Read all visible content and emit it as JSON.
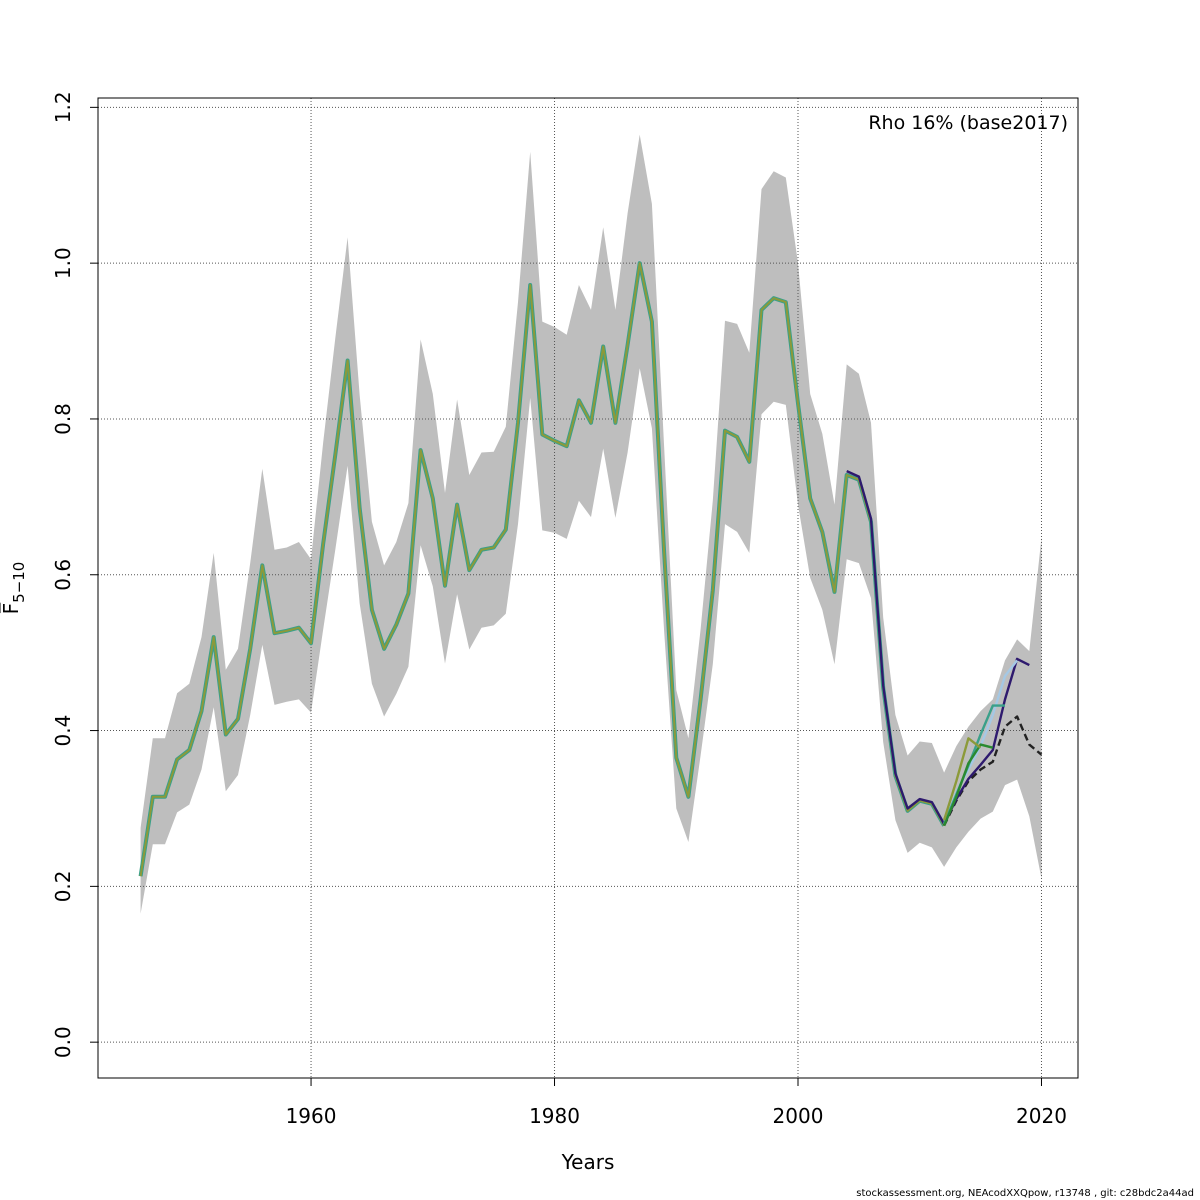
{
  "chart_data": {
    "type": "line",
    "title": "",
    "xlabel": "Years",
    "ylabel": "F̅",
    "ylabel_subscript": "5−10",
    "annotation": "Rho 16% (base2017)",
    "footer": "stockassessment.org, NEAcodXXQpow, r13748 , git: c28bdc2a44ad",
    "xlim": [
      1942.5,
      2023
    ],
    "ylim": [
      -0.046,
      1.212
    ],
    "x_ticks": [
      1960,
      1980,
      2000,
      2020
    ],
    "x_tick_labels": [
      "1960",
      "1980",
      "2000",
      "2020"
    ],
    "y_ticks": [
      0.0,
      0.2,
      0.4,
      0.6,
      0.8,
      1.0,
      1.2
    ],
    "y_tick_labels": [
      "0.0",
      "0.2",
      "0.4",
      "0.6",
      "0.8",
      "1.0",
      "1.2"
    ],
    "grid": true,
    "colors": {
      "band": "#bebebe",
      "base": "#222222",
      "peel1": "#2e1a6e",
      "peel2": "#a5c8e4",
      "peel3": "#3aa08a",
      "peel4": "#2a8a30",
      "peel5": "#8c9a3a",
      "grid": "#555555"
    },
    "years": [
      1946,
      1947,
      1948,
      1949,
      1950,
      1951,
      1952,
      1953,
      1954,
      1955,
      1956,
      1957,
      1958,
      1959,
      1960,
      1961,
      1962,
      1963,
      1964,
      1965,
      1966,
      1967,
      1968,
      1969,
      1970,
      1971,
      1972,
      1973,
      1974,
      1975,
      1976,
      1977,
      1978,
      1979,
      1980,
      1981,
      1982,
      1983,
      1984,
      1985,
      1986,
      1987,
      1988,
      1989,
      1990,
      1991,
      1992,
      1993,
      1994,
      1995,
      1996,
      1997,
      1998,
      1999,
      2000,
      2001,
      2002,
      2003,
      2004,
      2005,
      2006,
      2007,
      2008,
      2009,
      2010,
      2011,
      2012,
      2013,
      2014,
      2015,
      2016,
      2017,
      2018,
      2019,
      2020
    ],
    "main_series": [
      0.213,
      0.315,
      0.315,
      0.363,
      0.375,
      0.425,
      0.52,
      0.395,
      0.415,
      0.505,
      0.612,
      0.525,
      0.528,
      0.532,
      0.512,
      0.64,
      0.755,
      0.875,
      0.685,
      0.555,
      0.505,
      0.536,
      0.576,
      0.76,
      0.698,
      0.586,
      0.69,
      0.606,
      0.632,
      0.635,
      0.658,
      0.795,
      0.972,
      0.78,
      0.772,
      0.765,
      0.824,
      0.795,
      0.893,
      0.795,
      0.895,
      1.0,
      0.925,
      0.63,
      0.365,
      0.315,
      0.44,
      0.58,
      0.785,
      0.777,
      0.745,
      0.94,
      0.955,
      0.95,
      0.82,
      0.698,
      0.655,
      0.578,
      0.728,
      0.722,
      0.668,
      0.455,
      0.342,
      0.297,
      0.31,
      0.306,
      0.278
    ],
    "band_upper": [
      0.275,
      0.39,
      0.39,
      0.448,
      0.46,
      0.52,
      0.628,
      0.478,
      0.505,
      0.615,
      0.736,
      0.632,
      0.635,
      0.642,
      0.62,
      0.77,
      0.905,
      1.033,
      0.83,
      0.668,
      0.612,
      0.642,
      0.692,
      0.902,
      0.832,
      0.705,
      0.825,
      0.728,
      0.757,
      0.758,
      0.79,
      0.95,
      1.143,
      0.925,
      0.918,
      0.908,
      0.972,
      0.94,
      1.046,
      0.94,
      1.064,
      1.165,
      1.076,
      0.765,
      0.452,
      0.39,
      0.53,
      0.695,
      0.926,
      0.922,
      0.885,
      1.095,
      1.118,
      1.11,
      1.0,
      0.832,
      0.781,
      0.69,
      0.87,
      0.858,
      0.795,
      0.545,
      0.42,
      0.368,
      0.386,
      0.384,
      0.346,
      0.38,
      0.405,
      0.425,
      0.44,
      0.49,
      0.517,
      0.502,
      0.648
    ],
    "band_lower": [
      0.165,
      0.254,
      0.254,
      0.295,
      0.305,
      0.35,
      0.43,
      0.322,
      0.343,
      0.42,
      0.51,
      0.433,
      0.437,
      0.44,
      0.423,
      0.53,
      0.633,
      0.74,
      0.563,
      0.46,
      0.418,
      0.447,
      0.482,
      0.638,
      0.585,
      0.486,
      0.575,
      0.504,
      0.532,
      0.535,
      0.55,
      0.665,
      0.827,
      0.657,
      0.654,
      0.646,
      0.695,
      0.674,
      0.762,
      0.673,
      0.757,
      0.865,
      0.788,
      0.528,
      0.3,
      0.257,
      0.368,
      0.485,
      0.665,
      0.655,
      0.628,
      0.806,
      0.822,
      0.818,
      0.69,
      0.596,
      0.555,
      0.485,
      0.62,
      0.615,
      0.57,
      0.385,
      0.285,
      0.243,
      0.256,
      0.25,
      0.225,
      0.25,
      0.27,
      0.287,
      0.296,
      0.33,
      0.337,
      0.29,
      0.21
    ],
    "series": [
      {
        "color_key": "base",
        "dashed": true,
        "x": [
          2012,
          2013,
          2014,
          2015,
          2016,
          2017,
          2018,
          2019,
          2020
        ],
        "y": [
          0.278,
          0.31,
          0.335,
          0.35,
          0.36,
          0.405,
          0.418,
          0.382,
          0.369
        ]
      },
      {
        "color_key": "peel1",
        "dashed": false,
        "x": [
          2004,
          2005,
          2006,
          2007,
          2008,
          2009,
          2010,
          2011,
          2012,
          2013,
          2014,
          2015,
          2016,
          2017,
          2018,
          2019
        ],
        "y": [
          0.733,
          0.726,
          0.672,
          0.458,
          0.345,
          0.3,
          0.312,
          0.308,
          0.28,
          0.312,
          0.338,
          0.356,
          0.375,
          0.44,
          0.492,
          0.484
        ]
      },
      {
        "color_key": "peel2",
        "dashed": false,
        "x": [
          2012,
          2013,
          2014,
          2015,
          2016,
          2017,
          2018
        ],
        "y": [
          0.28,
          0.32,
          0.35,
          0.38,
          0.42,
          0.47,
          0.49
        ]
      },
      {
        "color_key": "peel3",
        "dashed": false,
        "x": [
          2012,
          2013,
          2014,
          2015,
          2016,
          2017
        ],
        "y": [
          0.28,
          0.318,
          0.355,
          0.395,
          0.432,
          0.432
        ]
      },
      {
        "color_key": "peel4",
        "dashed": false,
        "x": [
          2012,
          2013,
          2014,
          2015,
          2016
        ],
        "y": [
          0.278,
          0.315,
          0.358,
          0.382,
          0.378
        ]
      },
      {
        "color_key": "peel5",
        "dashed": false,
        "x": [
          2012,
          2013,
          2014,
          2015
        ],
        "y": [
          0.285,
          0.335,
          0.39,
          0.378
        ]
      }
    ]
  }
}
